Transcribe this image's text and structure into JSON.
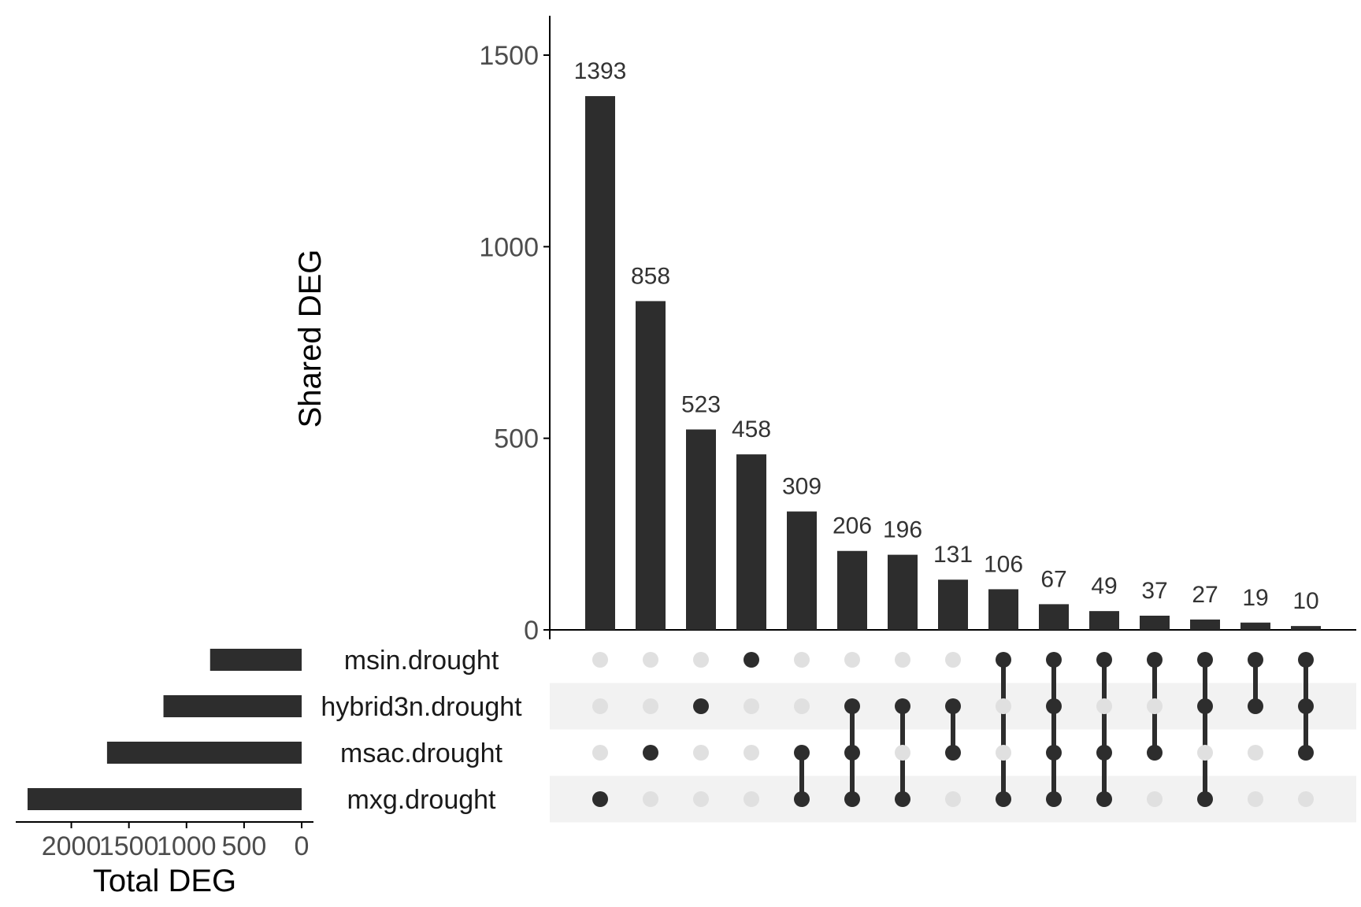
{
  "chart_data": {
    "type": "upset",
    "colors": {
      "bar": "#2d2d2d",
      "dot_active": "#2d2d2d",
      "dot_inactive": "#e0e0e0",
      "stripe": "#f2f2f2",
      "axis": "#000000",
      "tick_text": "#4d4d4d"
    },
    "intersections": {
      "ylabel": "Shared DEG",
      "ylim": [
        0,
        1600
      ],
      "yticks": [
        0,
        500,
        1000,
        1500
      ],
      "ytick_labels": [
        "0",
        "500",
        "1000",
        "1500"
      ],
      "values": [
        1393,
        858,
        523,
        458,
        309,
        206,
        196,
        131,
        106,
        67,
        49,
        37,
        27,
        19,
        10
      ],
      "value_labels": [
        "1393",
        "858",
        "523",
        "458",
        "309",
        "206",
        "196",
        "131",
        "106",
        "67",
        "49",
        "37",
        "27",
        "19",
        "10"
      ],
      "membership": [
        [
          "mxg.drought"
        ],
        [
          "msac.drought"
        ],
        [
          "hybrid3n.drought"
        ],
        [
          "msin.drought"
        ],
        [
          "msac.drought",
          "mxg.drought"
        ],
        [
          "hybrid3n.drought",
          "msac.drought",
          "mxg.drought"
        ],
        [
          "hybrid3n.drought",
          "mxg.drought"
        ],
        [
          "hybrid3n.drought",
          "msac.drought"
        ],
        [
          "msin.drought",
          "mxg.drought"
        ],
        [
          "msin.drought",
          "hybrid3n.drought",
          "msac.drought",
          "mxg.drought"
        ],
        [
          "msin.drought",
          "msac.drought",
          "mxg.drought"
        ],
        [
          "msin.drought",
          "msac.drought"
        ],
        [
          "msin.drought",
          "hybrid3n.drought",
          "mxg.drought"
        ],
        [
          "msin.drought",
          "hybrid3n.drought"
        ],
        [
          "msin.drought",
          "hybrid3n.drought",
          "msac.drought"
        ]
      ]
    },
    "sets": {
      "names": [
        "msin.drought",
        "hybrid3n.drought",
        "msac.drought",
        "mxg.drought"
      ],
      "xlabel": "Total DEG",
      "xlim": [
        0,
        2450
      ],
      "xticks": [
        2000,
        1500,
        1000,
        500,
        0
      ],
      "xtick_labels": [
        "2000",
        "1500",
        "1000",
        "500",
        "0"
      ],
      "totals": [
        795,
        1200,
        1690,
        2380
      ]
    }
  }
}
